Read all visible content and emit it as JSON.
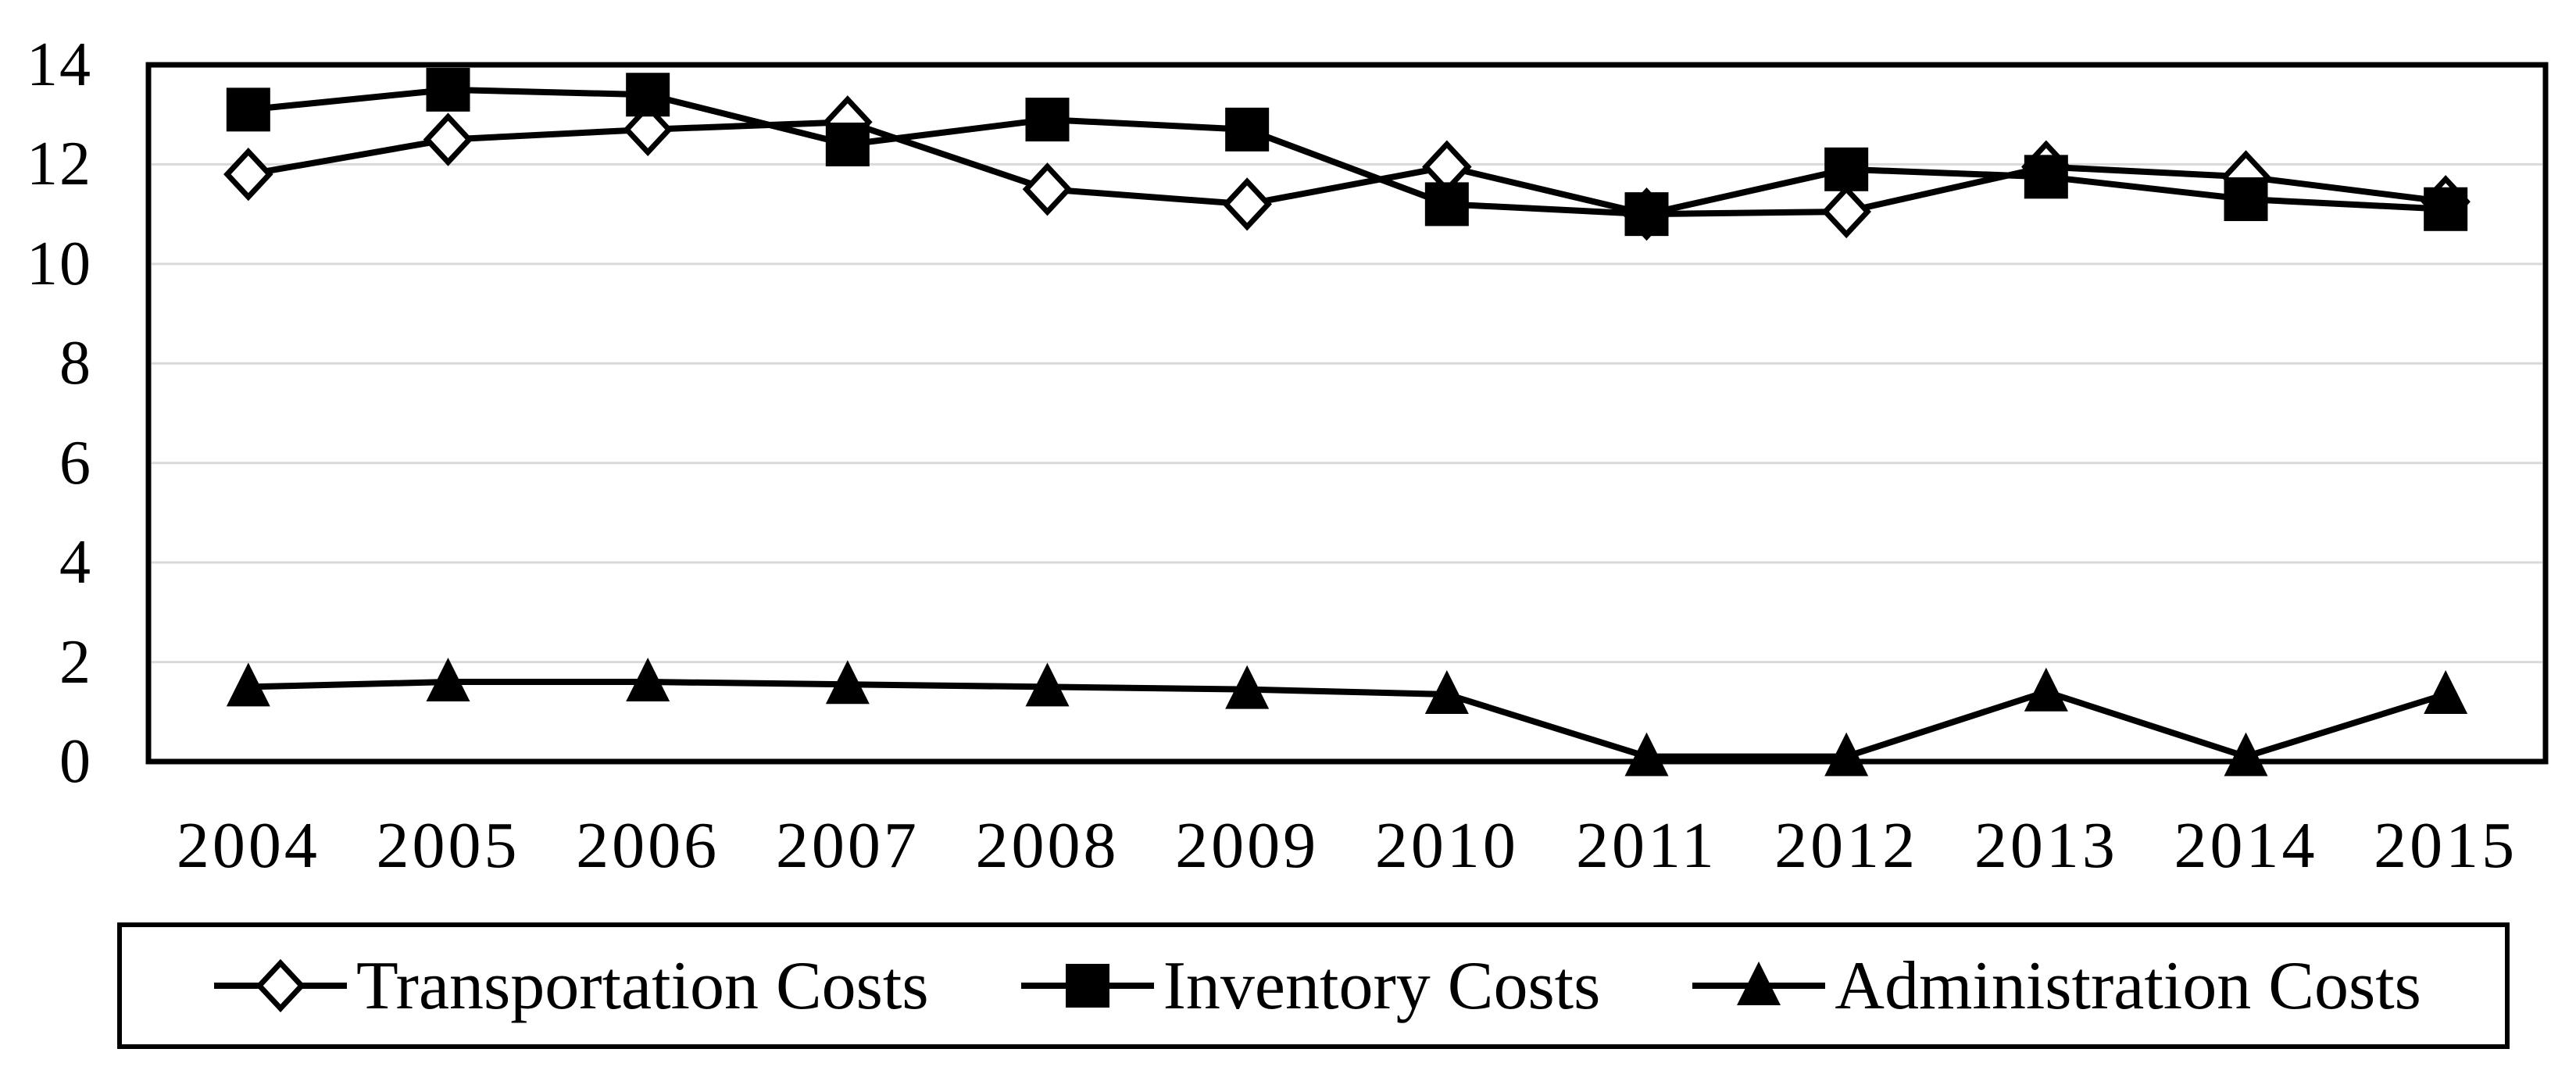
{
  "chart_data": {
    "type": "line",
    "x": [
      "2004",
      "2005",
      "2006",
      "2007",
      "2008",
      "2009",
      "2010",
      "2011",
      "2012",
      "2013",
      "2014",
      "2015"
    ],
    "series": [
      {
        "name": "Transportation Costs",
        "marker": "diamond",
        "marker_fill": "open",
        "values": [
          11.8,
          12.5,
          12.7,
          12.85,
          11.5,
          11.2,
          11.95,
          11.0,
          11.05,
          11.95,
          11.75,
          11.25
        ]
      },
      {
        "name": "Inventory Costs",
        "marker": "square",
        "marker_fill": "filled",
        "values": [
          13.1,
          13.5,
          13.4,
          12.4,
          12.9,
          12.7,
          11.2,
          11.0,
          11.9,
          11.75,
          11.3,
          11.1
        ]
      },
      {
        "name": "Administration Costs",
        "marker": "triangle",
        "marker_fill": "filled",
        "values": [
          1.5,
          1.6,
          1.6,
          1.55,
          1.5,
          1.45,
          1.35,
          0.1,
          0.1,
          1.4,
          0.1,
          1.35
        ]
      }
    ],
    "title": "",
    "xlabel": "",
    "ylabel": "",
    "ylim": [
      0,
      14
    ],
    "ytick_step": 2,
    "yticks": [
      "0",
      "2",
      "4",
      "6",
      "8",
      "10",
      "12",
      "14"
    ],
    "grid": "horizontal",
    "legend_position": "bottom-box",
    "colors": {
      "line": "#000000",
      "grid": "#d9d9d9",
      "background": "#ffffff",
      "open_marker_fill": "#ffffff"
    }
  }
}
